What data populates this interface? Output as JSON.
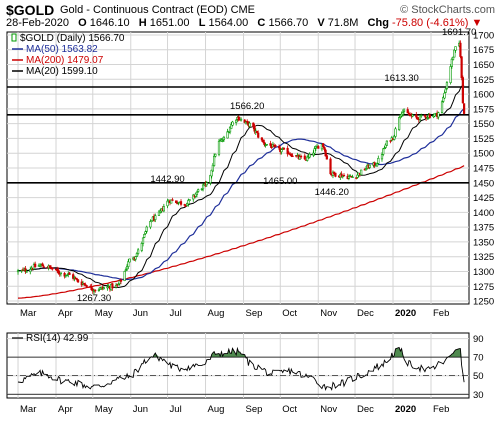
{
  "header": {
    "symbol": "$GOLD",
    "description": "Gold - Continuous Contract (EOD)",
    "exchange": "CME",
    "brand": "© StockCharts.com",
    "date": "28-Feb-2020",
    "open_label": "O",
    "open": "1646.10",
    "high_label": "H",
    "high": "1651.00",
    "low_label": "L",
    "low": "1564.00",
    "close_label": "C",
    "close": "1566.70",
    "volume_label": "V",
    "volume": "71.8M",
    "change_label": "Chg",
    "change": "-75.80 (-4.61%)",
    "change_arrow": "▼"
  },
  "legend": {
    "price": "$GOLD (Daily) 1566.70",
    "ma50": "MA(50) 1563.82",
    "ma200": "MA(200) 1479.07",
    "ma20": "MA(20) 1599.10",
    "rsi": "RSI(14) 42.99"
  },
  "colors": {
    "up": "#009900",
    "down": "#cc0000",
    "ma50": "#1f2f9a",
    "ma200": "#cc0000",
    "ma20": "#000000",
    "rsi_line": "#000000",
    "rsi_fill": "#4f8a4f",
    "grid": "#d4d4d4"
  },
  "chart_data": [
    {
      "type": "candlestick",
      "title": "$GOLD (Daily)",
      "x_ticks": [
        "Mar",
        "Apr",
        "May",
        "Jun",
        "Jul",
        "Aug",
        "Sep",
        "Oct",
        "Nov",
        "Dec",
        "2020",
        "Feb"
      ],
      "y_ticks": [
        1250,
        1275,
        1300,
        1325,
        1350,
        1375,
        1400,
        1425,
        1450,
        1475,
        1500,
        1525,
        1550,
        1575,
        1600,
        1625,
        1650,
        1675,
        1700
      ],
      "ylim": [
        1245,
        1705
      ],
      "grid": true,
      "legend_placement": "top-left",
      "anchors": {
        "dates": [
          "2019-03-01",
          "2019-03-20",
          "2019-04-10",
          "2019-04-23",
          "2019-05-02",
          "2019-05-20",
          "2019-06-03",
          "2019-06-20",
          "2019-07-03",
          "2019-07-15",
          "2019-08-01",
          "2019-08-13",
          "2019-08-27",
          "2019-09-04",
          "2019-09-20",
          "2019-10-01",
          "2019-10-21",
          "2019-11-04",
          "2019-11-12",
          "2019-11-28",
          "2019-12-16",
          "2019-12-31",
          "2020-01-08",
          "2020-01-20",
          "2020-02-05",
          "2020-02-24",
          "2020-02-28"
        ],
        "close": [
          1300,
          1310,
          1295,
          1280,
          1270,
          1275,
          1325,
          1390,
          1420,
          1415,
          1445,
          1520,
          1560,
          1550,
          1515,
          1505,
          1490,
          1515,
          1465,
          1460,
          1480,
          1525,
          1570,
          1560,
          1565,
          1685,
          1567
        ]
      },
      "annotations": [
        {
          "label": "1267.30",
          "date": "2019-05-02",
          "value": 1267.3
        },
        {
          "label": "1442.90",
          "date": "2019-07-01",
          "value": 1442.9
        },
        {
          "label": "1566.20",
          "date": "2019-09-04",
          "value": 1566.2
        },
        {
          "label": "1465.00",
          "date": "2019-10-01",
          "value": 1465.0
        },
        {
          "label": "1446.20",
          "date": "2019-11-12",
          "value": 1446.2
        },
        {
          "label": "1613.30",
          "date": "2020-01-08",
          "value": 1613.3
        },
        {
          "label": "1691.70",
          "date": "2020-02-24",
          "value": 1691.7
        }
      ],
      "horizontal_lines": [
        1450,
        1565,
        1612
      ],
      "series": [
        {
          "name": "MA(50)",
          "last": 1563.82
        },
        {
          "name": "MA(200)",
          "last": 1479.07
        },
        {
          "name": "MA(20)",
          "last": 1599.1
        }
      ]
    },
    {
      "type": "line",
      "title": "RSI(14)",
      "y_ticks": [
        30,
        50,
        70,
        90
      ],
      "ylim": [
        26,
        96
      ],
      "overbought": 70,
      "oversold": 30,
      "x_ticks": [
        "Mar",
        "Apr",
        "May",
        "Jun",
        "Jul",
        "Aug",
        "Sep",
        "Oct",
        "Nov",
        "Dec",
        "2020",
        "Feb"
      ],
      "anchors": {
        "dates": [
          "2019-03-01",
          "2019-03-20",
          "2019-04-10",
          "2019-05-02",
          "2019-05-28",
          "2019-06-20",
          "2019-07-10",
          "2019-07-30",
          "2019-08-10",
          "2019-08-27",
          "2019-09-10",
          "2019-09-25",
          "2019-10-10",
          "2019-10-25",
          "2019-11-08",
          "2019-11-20",
          "2019-12-05",
          "2019-12-20",
          "2020-01-06",
          "2020-01-15",
          "2020-01-30",
          "2020-02-12",
          "2020-02-24",
          "2020-02-28"
        ],
        "value": [
          45,
          52,
          44,
          38,
          48,
          71,
          58,
          62,
          74,
          76,
          60,
          52,
          55,
          48,
          38,
          42,
          50,
          60,
          77,
          62,
          56,
          65,
          82,
          43
        ]
      },
      "last": 42.99
    }
  ]
}
